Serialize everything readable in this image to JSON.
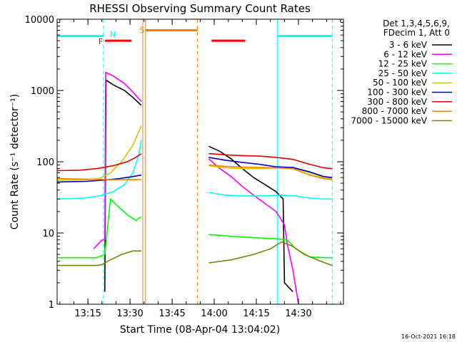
{
  "chart_data": {
    "type": "line",
    "title": "RHESSI Observing Summary Count Rates",
    "xlabel": "Start Time (08-Apr-04 13:04:02)",
    "ylabel": "Count Rate (s⁻¹ detector⁻¹)",
    "x_unit": "minutes after 13:04:02",
    "xlim": [
      0,
      102
    ],
    "ylim": [
      1,
      10000
    ],
    "yscale": "log",
    "grid": false,
    "legend_position": "right",
    "x_ticks": [
      {
        "value": 10.97,
        "label": "13:15"
      },
      {
        "value": 25.97,
        "label": "13:30"
      },
      {
        "value": 40.97,
        "label": "13:45"
      },
      {
        "value": 55.97,
        "label": "14:00"
      },
      {
        "value": 70.97,
        "label": "14:15"
      },
      {
        "value": 85.97,
        "label": "14:30"
      }
    ],
    "y_ticks": [
      {
        "value": 1,
        "label": "1"
      },
      {
        "value": 10,
        "label": "10"
      },
      {
        "value": 100,
        "label": "100"
      },
      {
        "value": 1000,
        "label": "1000"
      },
      {
        "value": 10000,
        "label": "10000"
      }
    ],
    "legend_header": [
      "Det 1,3,4,5,6,9,",
      "FDecim 1, Att 0"
    ],
    "series": [
      {
        "name": "3 - 6 keV",
        "color": "#000000",
        "segments": [
          [
            [
              17,
              1.5
            ],
            [
              17.4,
              1400
            ],
            [
              20,
              1200
            ],
            [
              24,
              1000
            ],
            [
              27,
              800
            ],
            [
              30,
              620
            ]
          ],
          [
            [
              54,
              165
            ],
            [
              58,
              140
            ],
            [
              62,
              110
            ],
            [
              66,
              80
            ],
            [
              70,
              60
            ],
            [
              74,
              48
            ],
            [
              78,
              38
            ],
            [
              80.5,
              30
            ],
            [
              81,
              2
            ],
            [
              84,
              1.5
            ]
          ]
        ]
      },
      {
        "name": "6 - 12 keV",
        "color": "#ff00ff",
        "segments": [
          [
            [
              13,
              6
            ],
            [
              16,
              8
            ],
            [
              17,
              8
            ],
            [
              17.3,
              1800
            ],
            [
              20,
              1600
            ],
            [
              24,
              1250
            ],
            [
              27,
              950
            ],
            [
              30,
              700
            ]
          ],
          [
            [
              54,
              110
            ],
            [
              58,
              80
            ],
            [
              62,
              62
            ],
            [
              66,
              45
            ],
            [
              70,
              34
            ],
            [
              74,
              26
            ],
            [
              78,
              20
            ],
            [
              81,
              13
            ],
            [
              82,
              7
            ],
            [
              84,
              3
            ],
            [
              86,
              1
            ]
          ]
        ]
      },
      {
        "name": "12 - 25 keV",
        "color": "#00ff00",
        "segments": [
          [
            [
              0,
              4.5
            ],
            [
              14,
              4.5
            ],
            [
              17,
              5
            ],
            [
              19,
              30
            ],
            [
              22,
              23
            ],
            [
              25,
              18
            ],
            [
              28,
              15
            ],
            [
              30,
              17
            ]
          ],
          [
            [
              54,
              9.5
            ],
            [
              62,
              9
            ],
            [
              70,
              8.6
            ],
            [
              78,
              8.3
            ],
            [
              82,
              8
            ],
            [
              85,
              6
            ],
            [
              90,
              4.6
            ],
            [
              96,
              4.5
            ],
            [
              98,
              4.5
            ]
          ]
        ]
      },
      {
        "name": "25 - 50 keV",
        "color": "#00ffff",
        "segments": [
          [
            [
              0,
              30
            ],
            [
              10,
              31
            ],
            [
              15,
              33
            ],
            [
              20,
              38
            ],
            [
              24,
              48
            ],
            [
              27,
              70
            ],
            [
              29,
              120
            ],
            [
              30,
              200
            ]
          ],
          [
            [
              54,
              37
            ],
            [
              60,
              34
            ],
            [
              66,
              33
            ],
            [
              72,
              33
            ],
            [
              80,
              34
            ],
            [
              85,
              33
            ],
            [
              90,
              31
            ],
            [
              95,
              30
            ],
            [
              98,
              30
            ]
          ]
        ]
      },
      {
        "name": "50 - 100 keV",
        "color": "#cccc00",
        "segments": [
          [
            [
              0,
              55
            ],
            [
              10,
              56
            ],
            [
              15,
              58
            ],
            [
              19,
              70
            ],
            [
              23,
              100
            ],
            [
              27,
              170
            ],
            [
              30,
              320
            ]
          ],
          [
            [
              54,
              88
            ],
            [
              60,
              82
            ],
            [
              66,
              80
            ],
            [
              72,
              80
            ],
            [
              78,
              82
            ],
            [
              84,
              82
            ],
            [
              90,
              70
            ],
            [
              95,
              60
            ],
            [
              98,
              58
            ]
          ]
        ]
      },
      {
        "name": "100 - 300 keV",
        "color": "#0000cc",
        "segments": [
          [
            [
              0,
              52
            ],
            [
              10,
              53
            ],
            [
              16,
              55
            ],
            [
              22,
              58
            ],
            [
              27,
              62
            ],
            [
              30,
              65
            ]
          ],
          [
            [
              54,
              115
            ],
            [
              60,
              105
            ],
            [
              66,
              98
            ],
            [
              72,
              92
            ],
            [
              78,
              85
            ],
            [
              84,
              83
            ],
            [
              90,
              72
            ],
            [
              95,
              62
            ],
            [
              98,
              60
            ]
          ]
        ]
      },
      {
        "name": "300 - 800 keV",
        "color": "#dd0000",
        "segments": [
          [
            [
              0,
              75
            ],
            [
              8,
              76
            ],
            [
              14,
              80
            ],
            [
              20,
              88
            ],
            [
              25,
              100
            ],
            [
              28,
              115
            ],
            [
              30,
              130
            ]
          ],
          [
            [
              54,
              130
            ],
            [
              60,
              125
            ],
            [
              66,
              122
            ],
            [
              72,
              120
            ],
            [
              78,
              115
            ],
            [
              84,
              108
            ],
            [
              90,
              92
            ],
            [
              95,
              82
            ],
            [
              98,
              80
            ]
          ]
        ]
      },
      {
        "name": "800 - 7000 keV",
        "color": "#ff8000",
        "segments": [
          [
            [
              0,
              58
            ],
            [
              10,
              57
            ],
            [
              20,
              56
            ],
            [
              30,
              56
            ]
          ],
          [
            [
              54,
              90
            ],
            [
              60,
              86
            ],
            [
              66,
              84
            ],
            [
              72,
              83
            ],
            [
              78,
              82
            ],
            [
              84,
              80
            ],
            [
              90,
              65
            ],
            [
              95,
              58
            ],
            [
              98,
              56
            ]
          ]
        ]
      },
      {
        "name": "7000 - 15000 keV",
        "color": "#808000",
        "segments": [
          [
            [
              0,
              3.5
            ],
            [
              8,
              3.5
            ],
            [
              14,
              3.5
            ],
            [
              16,
              3.6
            ],
            [
              19,
              4.2
            ],
            [
              23,
              5
            ],
            [
              27,
              5.6
            ],
            [
              30,
              5.6
            ]
          ],
          [
            [
              54,
              3.8
            ],
            [
              62,
              4.2
            ],
            [
              70,
              5
            ],
            [
              76,
              6
            ],
            [
              80,
              7.5
            ],
            [
              84,
              6.5
            ],
            [
              88,
              5
            ],
            [
              94,
              4
            ],
            [
              98,
              3.5
            ]
          ]
        ]
      }
    ],
    "flag_labels": [
      {
        "letter": "N",
        "color": "#00ffff"
      },
      {
        "letter": "F",
        "color": "#ff0000"
      },
      {
        "letter": "S",
        "color": "#ff8000"
      }
    ],
    "flags": [
      {
        "name": "night",
        "color": "#00ffff",
        "y": 5800,
        "ranges": [
          [
            0,
            16.5
          ],
          [
            78.5,
            98
          ]
        ]
      },
      {
        "name": "flare",
        "color": "#ff0000",
        "y": 5000,
        "ranges": [
          [
            17,
            26.5
          ],
          [
            55,
            67
          ]
        ]
      },
      {
        "name": "saa",
        "color": "#ff8000",
        "y": 7000,
        "ranges": [
          [
            31.5,
            50
          ]
        ]
      }
    ],
    "boundaries": [
      {
        "x": 0,
        "style": "solid",
        "color": "#00ffff"
      },
      {
        "x": 16.5,
        "style": "dashed",
        "color": "#00ffff"
      },
      {
        "x": 30.5,
        "style": "solid",
        "color": "#ff8000"
      },
      {
        "x": 31.5,
        "style": "solid",
        "color": "#ff8000"
      },
      {
        "x": 50,
        "style": "dashed",
        "color": "#ff8000"
      },
      {
        "x": 78.5,
        "style": "solid",
        "color": "#00ffff"
      },
      {
        "x": 98,
        "style": "dashed",
        "color": "#00ffff"
      }
    ],
    "footer": "16-Oct-2021 16:18"
  }
}
